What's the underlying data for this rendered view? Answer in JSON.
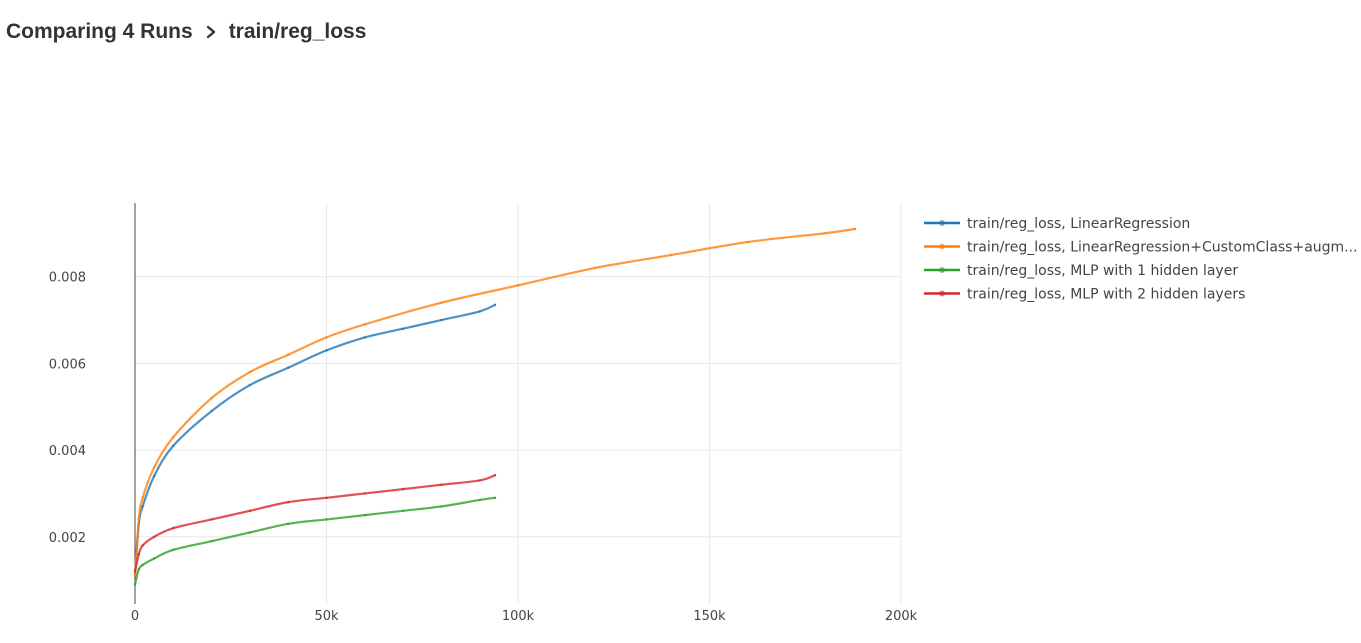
{
  "breadcrumb": {
    "parent": "Comparing 4 Runs",
    "separator_icon": "chevron-right-icon",
    "current": "train/reg_loss"
  },
  "chart_data": {
    "type": "line",
    "title": "",
    "xlabel": "",
    "ylabel": "",
    "xlim": [
      0,
      200000
    ],
    "ylim": [
      0.00045,
      0.0097
    ],
    "x_ticks": [
      0,
      50000,
      100000,
      150000,
      200000
    ],
    "x_tick_labels": [
      "0",
      "50k",
      "100k",
      "150k",
      "200k"
    ],
    "y_ticks": [
      0.002,
      0.004,
      0.006,
      0.008
    ],
    "y_tick_labels": [
      "0.002",
      "0.004",
      "0.006",
      "0.008"
    ],
    "grid": true,
    "legend_position": "right",
    "series": [
      {
        "name": "train/reg_loss, LinearRegression",
        "color": "#1f77b4",
        "x": [
          0,
          1000,
          2000,
          5000,
          10000,
          20000,
          30000,
          40000,
          50000,
          60000,
          70000,
          80000,
          90000,
          94000
        ],
        "y": [
          0.0011,
          0.0023,
          0.0027,
          0.0034,
          0.0041,
          0.0049,
          0.0055,
          0.0059,
          0.0063,
          0.0066,
          0.0068,
          0.007,
          0.0072,
          0.00735
        ]
      },
      {
        "name": "train/reg_loss, LinearRegression+CustomClass+augm...",
        "color": "#ff7f0e",
        "x": [
          0,
          1000,
          2000,
          5000,
          10000,
          20000,
          30000,
          40000,
          50000,
          60000,
          80000,
          100000,
          120000,
          140000,
          160000,
          180000,
          188000
        ],
        "y": [
          0.0011,
          0.0024,
          0.0029,
          0.0036,
          0.0043,
          0.0052,
          0.0058,
          0.0062,
          0.0066,
          0.0069,
          0.0074,
          0.0078,
          0.0082,
          0.0085,
          0.0088,
          0.009,
          0.0091
        ]
      },
      {
        "name": "train/reg_loss, MLP with 1 hidden layer",
        "color": "#2ca02c",
        "x": [
          0,
          1000,
          2000,
          5000,
          10000,
          20000,
          30000,
          40000,
          50000,
          60000,
          70000,
          80000,
          90000,
          94000
        ],
        "y": [
          0.0009,
          0.00125,
          0.00135,
          0.0015,
          0.0017,
          0.0019,
          0.0021,
          0.0023,
          0.0024,
          0.0025,
          0.0026,
          0.0027,
          0.00285,
          0.0029
        ]
      },
      {
        "name": "train/reg_loss, MLP with 2 hidden layers",
        "color": "#d62728",
        "x": [
          0,
          1000,
          2000,
          5000,
          10000,
          20000,
          30000,
          40000,
          50000,
          60000,
          70000,
          80000,
          90000,
          94000
        ],
        "y": [
          0.0012,
          0.0016,
          0.0018,
          0.002,
          0.0022,
          0.0024,
          0.0026,
          0.0028,
          0.0029,
          0.003,
          0.0031,
          0.0032,
          0.0033,
          0.00342
        ]
      }
    ]
  }
}
